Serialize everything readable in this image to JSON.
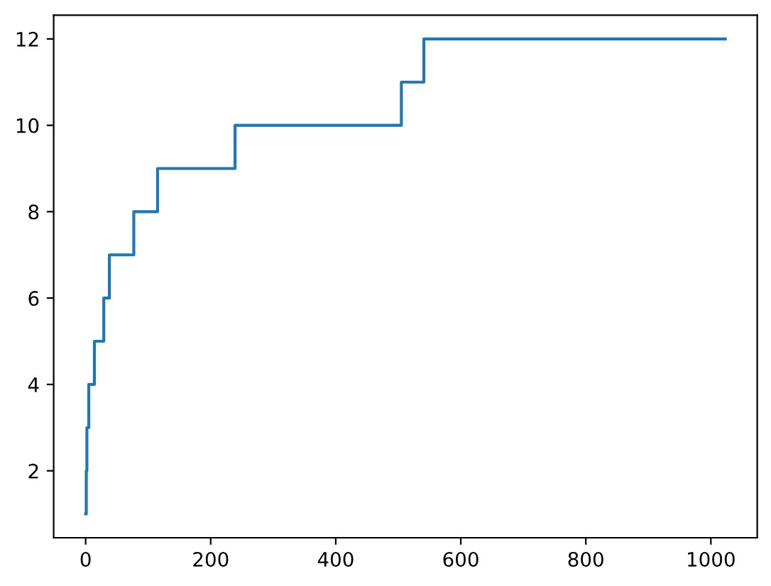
{
  "chart_data": {
    "type": "step",
    "x": [
      0,
      1,
      2,
      5,
      14,
      29,
      38,
      77,
      115,
      239,
      505,
      541,
      1023
    ],
    "values": [
      1,
      2,
      3,
      4,
      5,
      6,
      7,
      8,
      9,
      10,
      11,
      12,
      12
    ],
    "color": "#1f77b4",
    "xlim": [
      -51.15,
      1074.15
    ],
    "xticks": [
      0,
      200,
      400,
      600,
      800,
      1000
    ],
    "ylim": [
      0.45,
      12.55
    ],
    "yticks": [
      2,
      4,
      6,
      8,
      10,
      12
    ],
    "grid": false
  }
}
